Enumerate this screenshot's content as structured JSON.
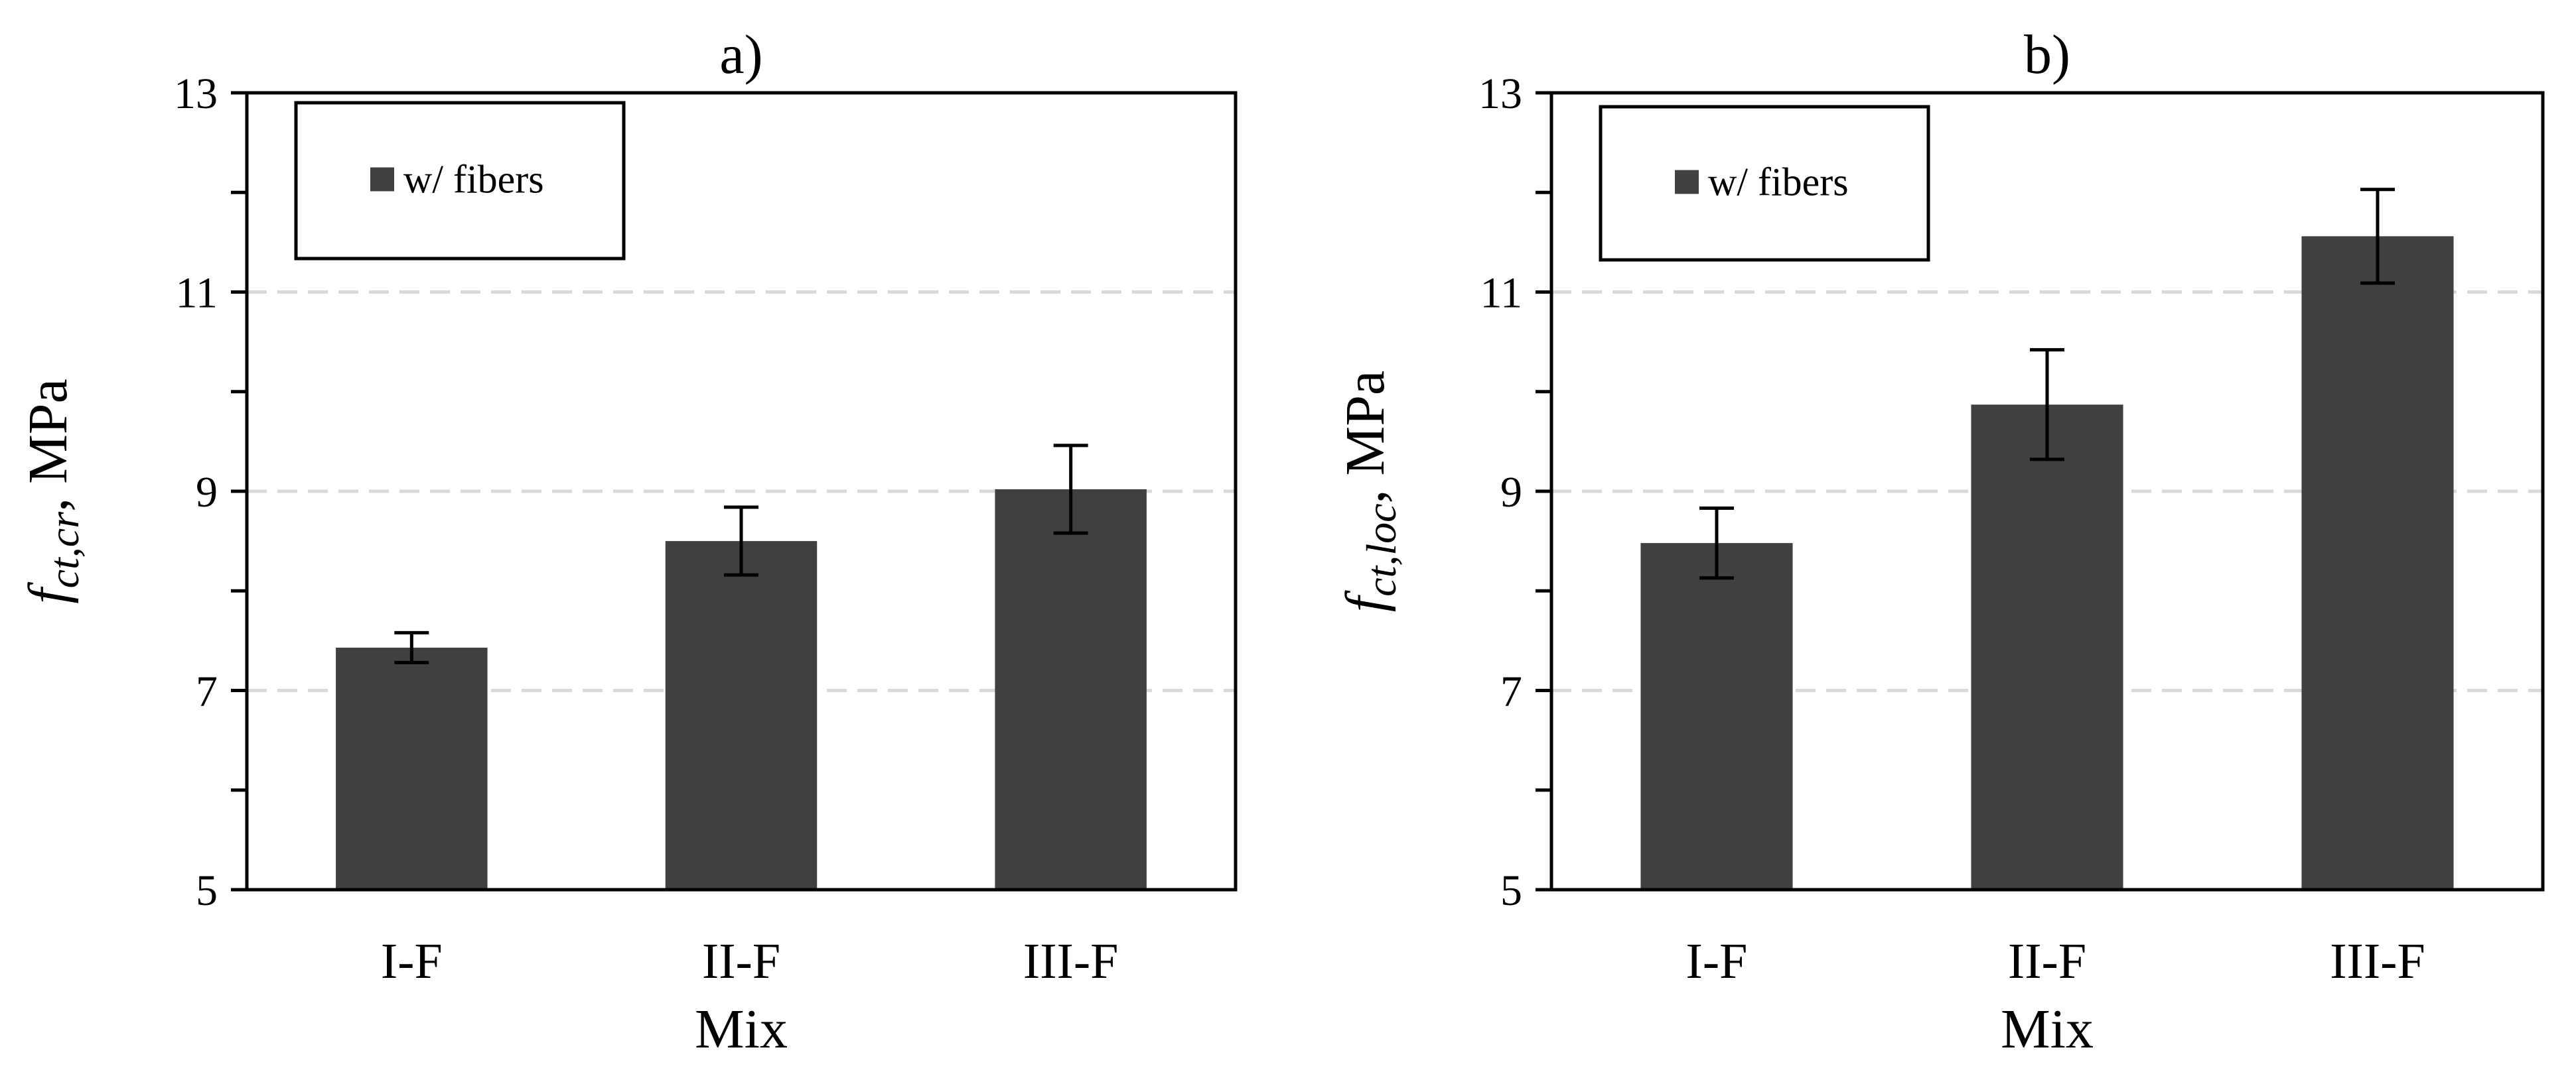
{
  "colors": {
    "bar": "#404040",
    "axis": "#000000",
    "grid": "#d9d9d9",
    "error_bar": "#000000",
    "background": "#ffffff"
  },
  "chart_data": [
    {
      "type": "bar",
      "title": "a)",
      "xlabel": "Mix",
      "ylabel": {
        "symbol": "f",
        "subscript": "ct,cr",
        "unit": ", MPa"
      },
      "ylim": [
        5,
        13
      ],
      "yticks": [
        5,
        7,
        9,
        11,
        13
      ],
      "ytick_labels": [
        "5",
        "7",
        "9",
        "11",
        "13"
      ],
      "y_minor_step": 1,
      "grid": true,
      "legend": {
        "position": "top-left",
        "entries": [
          "w/ fibers"
        ]
      },
      "categories": [
        "I-F",
        "II-F",
        "III-F"
      ],
      "series": [
        {
          "name": "w/ fibers",
          "values": [
            7.43,
            8.5,
            9.02
          ],
          "errors": [
            0.15,
            0.34,
            0.44
          ]
        }
      ]
    },
    {
      "type": "bar",
      "title": "b)",
      "xlabel": "Mix",
      "ylabel": {
        "symbol": "f",
        "subscript": "ct,loc",
        "unit": ", MPa"
      },
      "ylim": [
        5,
        13
      ],
      "yticks": [
        5,
        7,
        9,
        11,
        13
      ],
      "ytick_labels": [
        "5",
        "7",
        "9",
        "11",
        "13"
      ],
      "y_minor_step": 1,
      "grid": true,
      "legend": {
        "position": "top-left",
        "entries": [
          "w/ fibers"
        ]
      },
      "categories": [
        "I-F",
        "II-F",
        "III-F"
      ],
      "series": [
        {
          "name": "w/ fibers",
          "values": [
            8.48,
            9.87,
            11.56
          ],
          "errors": [
            0.35,
            0.55,
            0.47
          ]
        }
      ]
    }
  ]
}
